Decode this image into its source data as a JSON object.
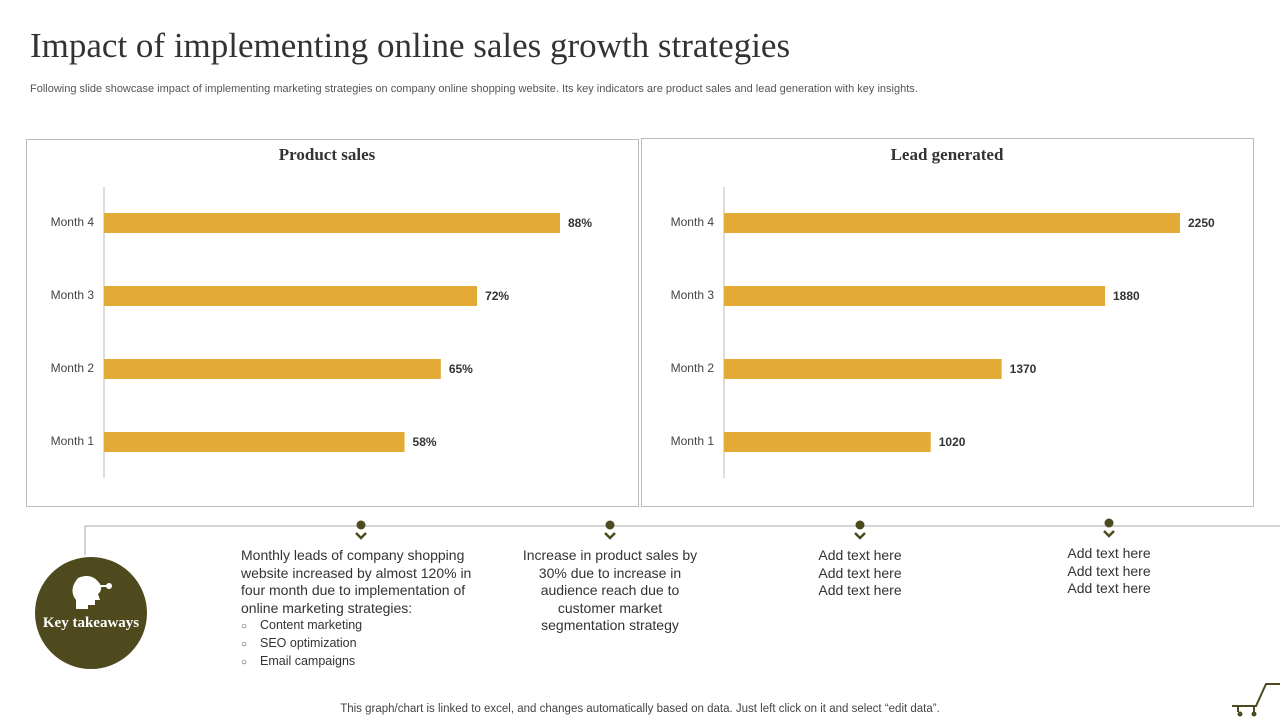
{
  "header": {
    "title": "Impact of implementing online sales growth strategies",
    "subtitle": "Following slide showcase impact of implementing marketing strategies on company online shopping website. Its key indicators are product sales and lead generation with key insights."
  },
  "chart_data": [
    {
      "type": "bar",
      "orientation": "horizontal",
      "title": "Product sales",
      "categories": [
        "Month 1",
        "Month 2",
        "Month 3",
        "Month 4"
      ],
      "values": [
        58,
        65,
        72,
        88
      ],
      "value_labels": [
        "58%",
        "65%",
        "72%",
        "88%"
      ],
      "color": "#e3ab36"
    },
    {
      "type": "bar",
      "orientation": "horizontal",
      "title": "Lead generated",
      "categories": [
        "Month 1",
        "Month 2",
        "Month 3",
        "Month 4"
      ],
      "values": [
        1020,
        1370,
        1880,
        2250
      ],
      "color": "#e3ab36"
    }
  ],
  "takeaways": {
    "label": "Key takeaways",
    "items": [
      {
        "text": "Monthly leads of company shopping website increased by almost 120% in four month due to implementation of online marketing strategies:",
        "bullets": [
          "Content marketing",
          "SEO optimization",
          "Email campaigns"
        ]
      },
      {
        "text": "Increase in product sales by 30% due to increase in audience reach due to customer market segmentation strategy"
      },
      {
        "lines": [
          "Add text here",
          "Add text here",
          "Add text here"
        ]
      },
      {
        "lines": [
          "Add text here",
          "Add text here",
          "Add text here"
        ]
      }
    ]
  },
  "footer": "This graph/chart is linked to excel, and changes automatically based on data. Just left click on it and select “edit data”."
}
